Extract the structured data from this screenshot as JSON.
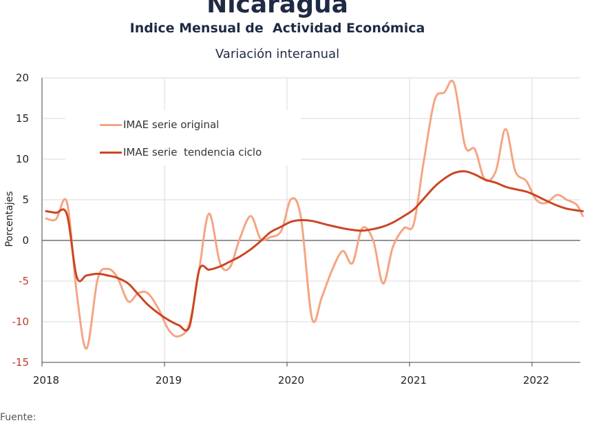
{
  "title": "Nicaragua",
  "subtitle": "Indice Mensual de  Actividad Económica",
  "subtitle2": "Variación interanual",
  "source": "Fuente:",
  "colors": {
    "original": "#f4a582",
    "trend": "#cc4522",
    "negative_tick": "#c0392b",
    "grid": "#d9d9d9"
  },
  "chart_data": {
    "type": "line",
    "title": "Indice Mensual de  Actividad Económica",
    "subtitle": "Variación interanual",
    "ylabel": "Porcentajes",
    "xlabel": "",
    "ylim": [
      -15,
      20
    ],
    "xlim": [
      2018.0,
      2022.42
    ],
    "yticks": [
      -15,
      -10,
      -5,
      0,
      5,
      10,
      15,
      20
    ],
    "xticks": [
      "2018",
      "2019",
      "2020",
      "2021",
      "2022"
    ],
    "grid": true,
    "legend_position": "top-left",
    "series": [
      {
        "name": "IMAE serie original",
        "x": [
          2018.0,
          2018.08,
          2018.17,
          2018.25,
          2018.33,
          2018.42,
          2018.5,
          2018.58,
          2018.67,
          2018.75,
          2018.83,
          2018.92,
          2019.0,
          2019.08,
          2019.17,
          2019.25,
          2019.33,
          2019.42,
          2019.5,
          2019.58,
          2019.67,
          2019.75,
          2019.83,
          2019.92,
          2020.0,
          2020.08,
          2020.17,
          2020.25,
          2020.33,
          2020.42,
          2020.5,
          2020.58,
          2020.67,
          2020.75,
          2020.83,
          2020.92,
          2021.0,
          2021.08,
          2021.17,
          2021.25,
          2021.33,
          2021.42,
          2021.5,
          2021.58,
          2021.67,
          2021.75,
          2021.83,
          2021.92,
          2022.0,
          2022.08,
          2022.17,
          2022.25,
          2022.33,
          2022.38
        ],
        "values": [
          2.7,
          2.6,
          4.7,
          -6.5,
          -13.3,
          -4.8,
          -3.5,
          -4.5,
          -7.5,
          -6.5,
          -6.5,
          -8.5,
          -11.0,
          -11.8,
          -10.2,
          -3.5,
          3.3,
          -2.8,
          -3.3,
          0.2,
          3.0,
          0.2,
          0.4,
          1.2,
          5.1,
          2.8,
          -9.6,
          -7.0,
          -3.8,
          -1.3,
          -2.8,
          1.5,
          0.0,
          -5.3,
          -0.8,
          1.5,
          2.0,
          9.5,
          17.2,
          18.2,
          19.3,
          11.6,
          11.2,
          7.5,
          8.5,
          13.7,
          8.5,
          7.3,
          5.0,
          4.6,
          5.6,
          5.0,
          4.4,
          3.0
        ]
      },
      {
        "name": "IMAE serie  tendencia ciclo",
        "x": [
          2018.0,
          2018.08,
          2018.17,
          2018.25,
          2018.33,
          2018.42,
          2018.5,
          2018.58,
          2018.67,
          2018.75,
          2018.83,
          2018.92,
          2019.0,
          2019.08,
          2019.17,
          2019.25,
          2019.33,
          2019.42,
          2019.5,
          2019.58,
          2019.67,
          2019.75,
          2019.83,
          2019.92,
          2020.0,
          2020.08,
          2020.17,
          2020.25,
          2020.33,
          2020.42,
          2020.5,
          2020.58,
          2020.67,
          2020.75,
          2020.83,
          2020.92,
          2021.0,
          2021.08,
          2021.17,
          2021.25,
          2021.33,
          2021.42,
          2021.5,
          2021.58,
          2021.67,
          2021.75,
          2021.83,
          2021.92,
          2022.0,
          2022.08,
          2022.17,
          2022.25,
          2022.33,
          2022.38
        ],
        "values": [
          3.6,
          3.4,
          3.2,
          -4.5,
          -4.3,
          -4.1,
          -4.3,
          -4.6,
          -5.3,
          -6.6,
          -7.9,
          -9.0,
          -9.8,
          -10.4,
          -10.6,
          -3.6,
          -3.6,
          -3.2,
          -2.6,
          -2.0,
          -1.1,
          -0.1,
          1.0,
          1.7,
          2.3,
          2.5,
          2.4,
          2.1,
          1.8,
          1.5,
          1.3,
          1.2,
          1.4,
          1.7,
          2.2,
          3.0,
          3.8,
          5.1,
          6.6,
          7.6,
          8.3,
          8.5,
          8.1,
          7.5,
          7.1,
          6.6,
          6.3,
          6.0,
          5.5,
          4.9,
          4.3,
          3.9,
          3.7,
          3.6
        ]
      }
    ]
  }
}
